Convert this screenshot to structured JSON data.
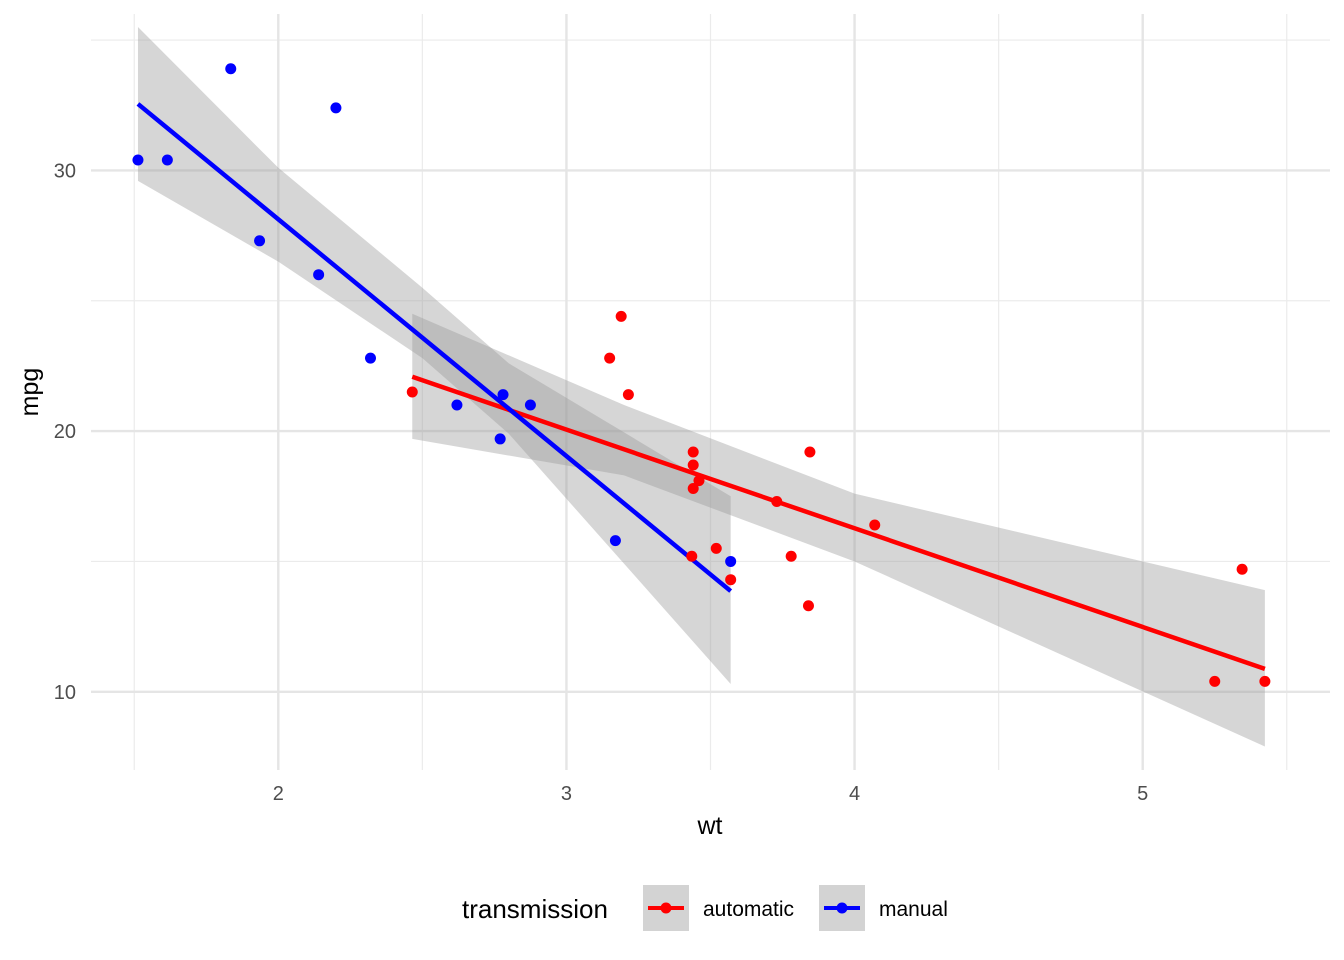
{
  "chart_data": {
    "type": "scatter",
    "title": "",
    "xlabel": "wt",
    "ylabel": "mpg",
    "xlim": [
      1.35,
      5.65
    ],
    "ylim": [
      7.0,
      36.0
    ],
    "xticks": [
      2,
      3,
      4,
      5
    ],
    "xtick_labels": [
      "2",
      "3",
      "4",
      "5"
    ],
    "yticks": [
      10,
      20,
      30
    ],
    "ytick_labels": [
      "10",
      "20",
      "30"
    ],
    "grid": true,
    "legend": {
      "title": "transmission",
      "position": "bottom"
    },
    "series": [
      {
        "name": "automatic",
        "color": "#ff0000",
        "points": [
          [
            2.465,
            21.5
          ],
          [
            3.215,
            21.4
          ],
          [
            3.44,
            18.7
          ],
          [
            3.46,
            18.1
          ],
          [
            3.57,
            14.3
          ],
          [
            3.19,
            24.4
          ],
          [
            3.15,
            22.8
          ],
          [
            3.44,
            19.2
          ],
          [
            3.44,
            17.8
          ],
          [
            4.07,
            16.4
          ],
          [
            3.73,
            17.3
          ],
          [
            3.78,
            15.2
          ],
          [
            5.25,
            10.4
          ],
          [
            5.424,
            10.4
          ],
          [
            5.345,
            14.7
          ],
          [
            3.52,
            15.5
          ],
          [
            3.435,
            15.2
          ],
          [
            3.84,
            13.3
          ],
          [
            3.845,
            19.2
          ]
        ],
        "fit": {
          "x_range": [
            2.465,
            5.424
          ],
          "intercept": 31.416,
          "slope": -3.786
        },
        "ci_band": {
          "x": [
            2.465,
            3.2,
            4.0,
            5.424
          ],
          "lower": [
            19.7,
            18.3,
            15.0,
            7.9
          ],
          "upper": [
            24.5,
            21.0,
            17.6,
            13.9
          ]
        }
      },
      {
        "name": "manual",
        "color": "#0000ff",
        "points": [
          [
            2.62,
            21.0
          ],
          [
            2.875,
            21.0
          ],
          [
            2.32,
            22.8
          ],
          [
            2.2,
            32.4
          ],
          [
            1.615,
            30.4
          ],
          [
            1.835,
            33.9
          ],
          [
            1.935,
            27.3
          ],
          [
            2.14,
            26.0
          ],
          [
            1.513,
            30.4
          ],
          [
            3.17,
            15.8
          ],
          [
            2.77,
            19.7
          ],
          [
            2.78,
            21.4
          ],
          [
            3.57,
            15.0
          ]
        ],
        "fit": {
          "x_range": [
            1.513,
            3.57
          ],
          "intercept": 46.294,
          "slope": -9.084
        },
        "ci_band": {
          "x": [
            1.513,
            2.0,
            2.5,
            2.8,
            3.57
          ],
          "lower": [
            29.6,
            26.5,
            22.8,
            19.9,
            10.3
          ],
          "upper": [
            35.5,
            30.1,
            25.5,
            22.6,
            17.5
          ]
        }
      }
    ]
  }
}
